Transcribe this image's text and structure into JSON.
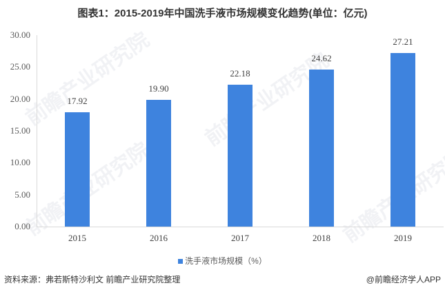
{
  "title": "图表1：2015-2019年中国洗手液市场规模变化趋势(单位：亿元)",
  "chart_data": {
    "type": "bar",
    "title": "图表1：2015-2019年中国洗手液市场规模变化趋势(单位：亿元)",
    "categories": [
      "2015",
      "2016",
      "2017",
      "2018",
      "2019"
    ],
    "series": [
      {
        "name": "洗手液市场规模（%）",
        "values": [
          17.92,
          19.9,
          22.18,
          24.62,
          27.21
        ],
        "color": "#3e83de"
      }
    ],
    "value_labels": [
      "17.92",
      "19.90",
      "22.18",
      "24.62",
      "27.21"
    ],
    "xlabel": "",
    "ylabel": "",
    "ylim": [
      0,
      30
    ],
    "yticks": [
      "0.00",
      "5.00",
      "10.00",
      "15.00",
      "20.00",
      "25.00",
      "30.00"
    ],
    "grid": false,
    "legend_position": "bottom"
  },
  "legend": {
    "label": "洗手液市场规模（%）"
  },
  "footer": {
    "source": "资料来源：弗若斯特沙利文 前瞻产业研究院整理",
    "credit": "@前瞻经济学人APP"
  },
  "watermark": {
    "text": "前瞻产业研究院"
  }
}
